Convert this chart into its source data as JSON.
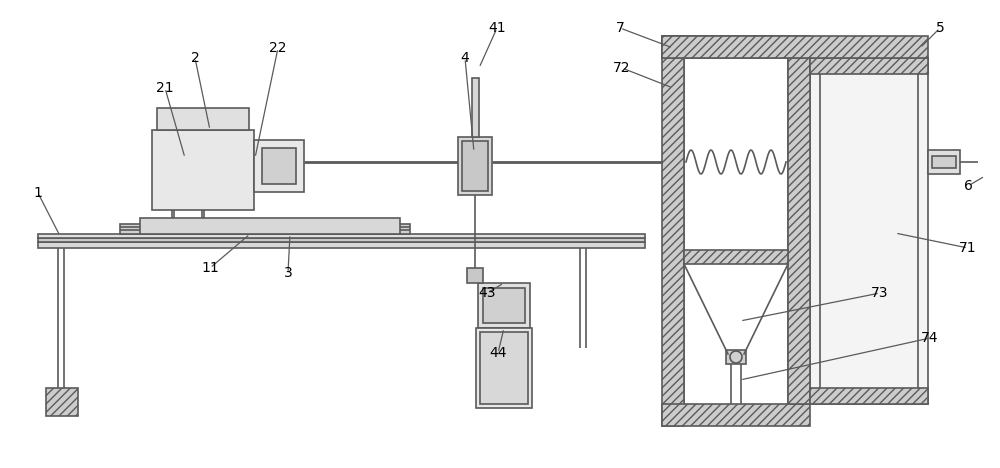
{
  "bg_color": "#ffffff",
  "line_color": "#5a5a5a",
  "label_color": "#000000",
  "label_fs": 10,
  "fig_w": 10.0,
  "fig_h": 4.68,
  "dpi": 100
}
